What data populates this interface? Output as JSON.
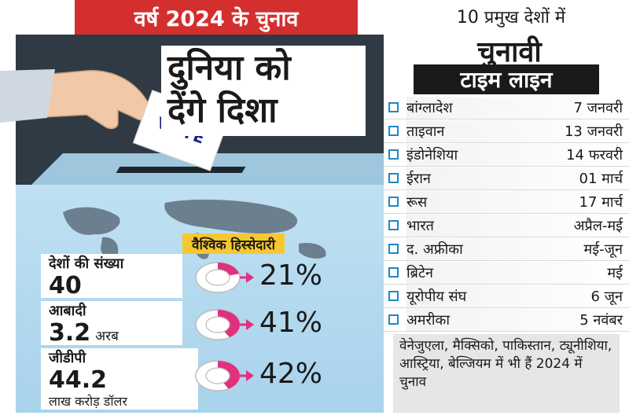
{
  "left": {
    "headline": "वर्ष 2024 के चुनाव",
    "title_line1": "दुनिया को",
    "title_line2": "देंगे दिशा",
    "ballot_text": "VOTE",
    "share_label": "वैश्विक हिस्सेदारी",
    "stats": [
      {
        "label": "देशों की संख्या",
        "value": "40",
        "unit": "",
        "sub": "",
        "percent": "21%",
        "fraction": 0.21
      },
      {
        "label": "आबादी",
        "value": "3.2",
        "unit": "अरब",
        "sub": "",
        "percent": "41%",
        "fraction": 0.41
      },
      {
        "label": "जीडीपी",
        "value": "44.2",
        "unit": "",
        "sub": "लाख करोड़ डॉलर",
        "percent": "42%",
        "fraction": 0.42
      }
    ],
    "colors": {
      "headline_bg": "#d32f2f",
      "donut": "#e0317f",
      "label_bg": "#f6c830"
    }
  },
  "right": {
    "heading": "10 प्रमुख देशों में",
    "big_word": "चुनावी",
    "bar_text": "टाइम लाइन",
    "timeline": [
      {
        "country": "बांग्लादेश",
        "date": "7 जनवरी"
      },
      {
        "country": "ताइवान",
        "date": "13 जनवरी"
      },
      {
        "country": "इंडोनेशिया",
        "date": "14 फरवरी"
      },
      {
        "country": "ईरान",
        "date": "01 मार्च"
      },
      {
        "country": "रूस",
        "date": "17 मार्च"
      },
      {
        "country": "भारत",
        "date": "अप्रैल-मई"
      },
      {
        "country": "द. अफ्रीका",
        "date": "मई-जून"
      },
      {
        "country": "ब्रिटेन",
        "date": "मई"
      },
      {
        "country": "यूरोपीय संघ",
        "date": "6 जून"
      },
      {
        "country": "अमरीका",
        "date": "5 नवंबर"
      }
    ],
    "footer": "वेनेजुएला, मैक्सिको, पाकिस्तान, ट्यूनीशिया, आस्ट्रिया, बेल्जियम में भी हैं 2024 में चुनाव"
  }
}
